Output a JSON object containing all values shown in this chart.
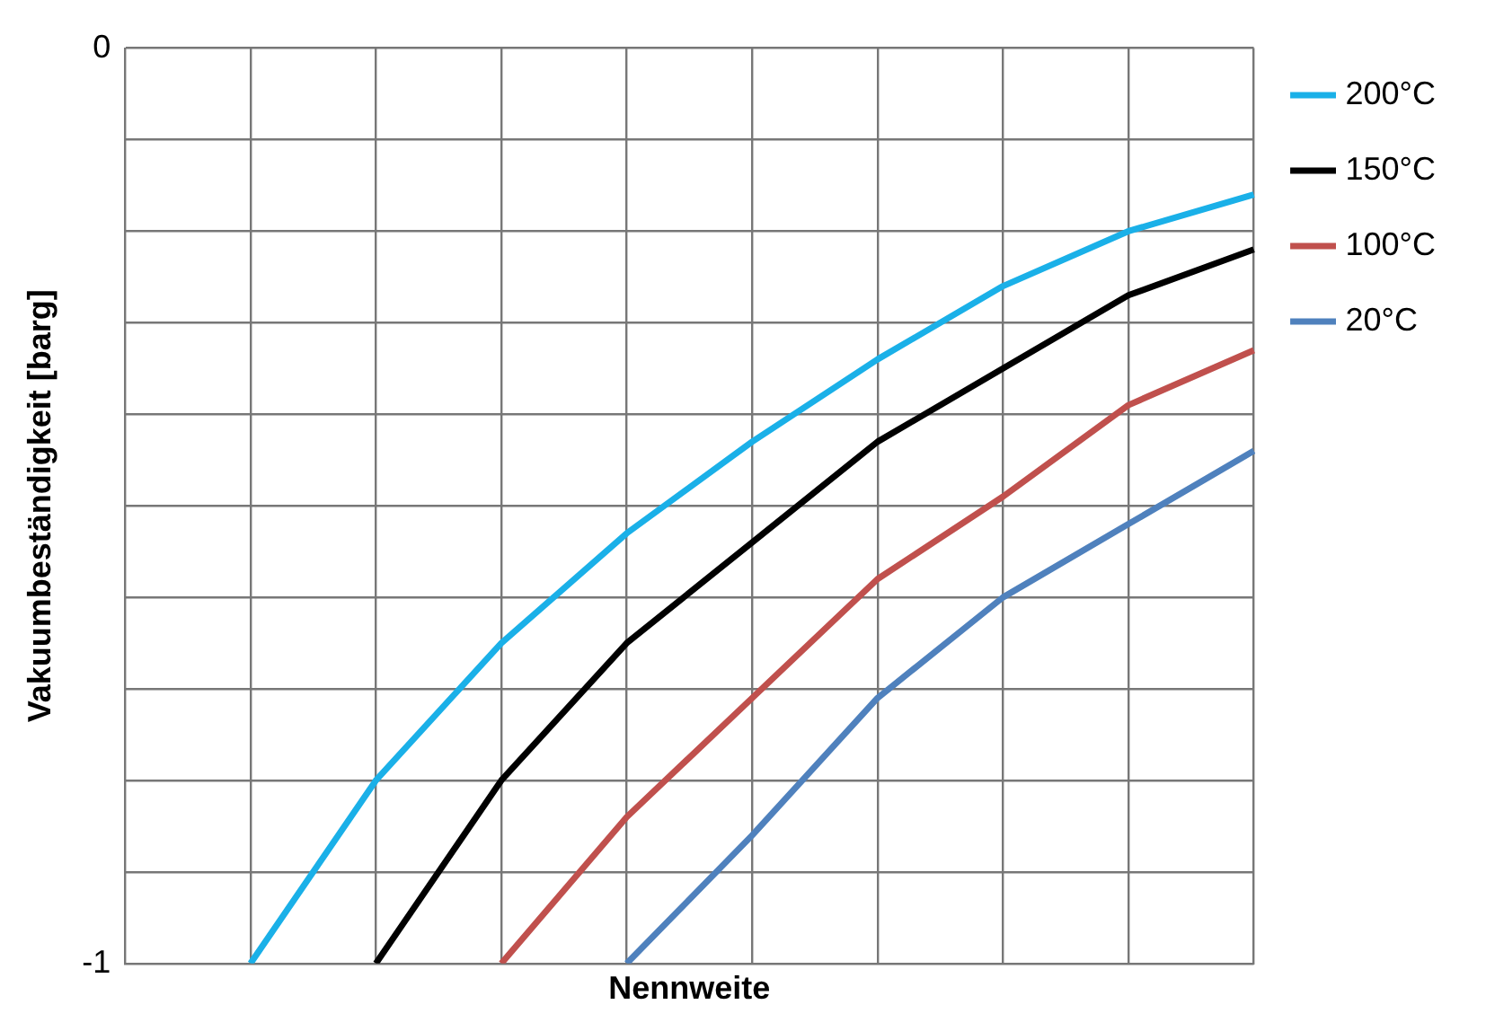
{
  "chart_data": {
    "type": "line",
    "xlabel": "Nennweite",
    "ylabel": "Vakuumbeständigkeit [barg]",
    "categories": [
      null,
      null,
      null,
      null,
      null,
      null,
      null,
      null,
      null,
      null
    ],
    "series": [
      {
        "name": "200°C",
        "color": "#1ab0e8",
        "values": [
          null,
          -1,
          -0.8,
          -0.65,
          -0.53,
          -0.43,
          -0.34,
          -0.26,
          -0.2,
          -0.16
        ]
      },
      {
        "name": "150°C",
        "color": "#000000",
        "values": [
          null,
          null,
          -1,
          -0.8,
          -0.65,
          -0.54,
          -0.43,
          -0.35,
          -0.27,
          -0.22
        ]
      },
      {
        "name": "100°C",
        "color": "#c0504d",
        "values": [
          null,
          null,
          null,
          -1,
          -0.84,
          -0.71,
          -0.58,
          -0.49,
          -0.39,
          -0.33
        ]
      },
      {
        "name": "20°C",
        "color": "#4f81bd",
        "values": [
          null,
          null,
          null,
          null,
          -1,
          -0.86,
          -0.71,
          -0.6,
          -0.52,
          -0.44
        ]
      }
    ],
    "ylim": [
      -1,
      0
    ],
    "yticks": [
      -1,
      {
        "value": -0.9,
        "label": null
      },
      {
        "value": -0.8,
        "label": null
      },
      {
        "value": -0.7,
        "label": null
      },
      {
        "value": -0.6,
        "label": null
      },
      {
        "value": -0.5,
        "label": null
      },
      {
        "value": -0.4,
        "label": null
      },
      {
        "value": -0.3,
        "label": null
      },
      {
        "value": -0.2,
        "label": null
      },
      {
        "value": -0.1,
        "label": null
      },
      0
    ],
    "grid": true,
    "legend": "right",
    "tick_labels": "y",
    "marker": "none",
    "line_style": "solid"
  }
}
